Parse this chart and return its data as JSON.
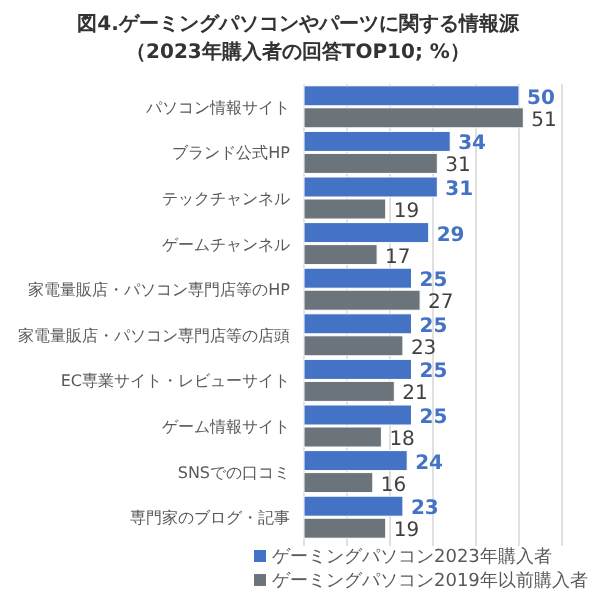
{
  "chart_data": {
    "type": "bar",
    "orientation": "horizontal",
    "title": "図4.ゲーミングパソコンやパーツに関する情報源",
    "subtitle": "（2023年購入者の回答TOP10; %）",
    "categories": [
      "パソコン情報サイト",
      "ブランド公式HP",
      "テックチャンネル",
      "ゲームチャンネル",
      "家電量販店・パソコン専門店等のHP",
      "家電量販店・パソコン専門店等の店頭",
      "EC専業サイト・レビューサイト",
      "ゲーム情報サイト",
      "SNSでの口コミ",
      "専門家のブログ・記事"
    ],
    "series": [
      {
        "name": "ゲーミングパソコン2023年購入者",
        "color": "#4472c4",
        "values": [
          50,
          34,
          31,
          29,
          25,
          25,
          25,
          25,
          24,
          23
        ]
      },
      {
        "name": "ゲーミングパソコン2019年以前購入者",
        "color": "#6b737b",
        "values": [
          51,
          31,
          19,
          17,
          27,
          23,
          21,
          18,
          16,
          19
        ]
      }
    ],
    "xlim": [
      0,
      60
    ],
    "xticks": [
      {
        "value": 0,
        "label": null
      },
      {
        "value": 10,
        "label": null
      },
      {
        "value": 20,
        "label": null
      },
      {
        "value": 30,
        "label": null
      },
      {
        "value": 40,
        "label": null
      },
      {
        "value": 50,
        "label": null
      },
      {
        "value": 60,
        "label": null
      }
    ],
    "tick_labels": "y",
    "grid": "x",
    "data_labels": true,
    "legend": "bottom"
  }
}
